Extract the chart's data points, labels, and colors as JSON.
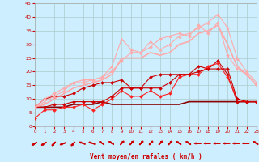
{
  "xlabel": "Vent moyen/en rafales ( km/h )",
  "background_color": "#cceeff",
  "grid_color": "#aacccc",
  "xlim": [
    0,
    23
  ],
  "ylim": [
    0,
    45
  ],
  "xticks": [
    0,
    1,
    2,
    3,
    4,
    5,
    6,
    7,
    8,
    9,
    10,
    11,
    12,
    13,
    14,
    15,
    16,
    17,
    18,
    19,
    20,
    21,
    22,
    23
  ],
  "yticks": [
    0,
    5,
    10,
    15,
    20,
    25,
    30,
    35,
    40,
    45
  ],
  "series": [
    {
      "x": [
        0,
        1,
        2,
        3,
        4,
        5,
        6,
        7,
        8,
        9,
        10,
        11,
        12,
        13,
        14,
        15,
        16,
        17,
        18,
        19,
        20,
        21,
        22,
        23
      ],
      "y": [
        7,
        10,
        11,
        11,
        12,
        14,
        15,
        16,
        16,
        17,
        14,
        14,
        18,
        19,
        19,
        19,
        19,
        22,
        21,
        24,
        19,
        9,
        9,
        9
      ],
      "color": "#cc0000",
      "marker": "D",
      "markersize": 2.0,
      "linewidth": 0.8
    },
    {
      "x": [
        0,
        1,
        2,
        3,
        4,
        5,
        6,
        7,
        8,
        9,
        10,
        11,
        12,
        13,
        14,
        15,
        16,
        17,
        18,
        19,
        20,
        21,
        22,
        23
      ],
      "y": [
        3,
        6,
        6,
        7,
        7,
        8,
        6,
        8,
        10,
        13,
        11,
        11,
        13,
        11,
        12,
        18,
        19,
        19,
        22,
        23,
        18,
        10,
        9,
        9
      ],
      "color": "#ff2222",
      "marker": "D",
      "markersize": 2.0,
      "linewidth": 0.8
    },
    {
      "x": [
        0,
        1,
        2,
        3,
        4,
        5,
        6,
        7,
        8,
        9,
        10,
        11,
        12,
        13,
        14,
        15,
        16,
        17,
        18,
        19,
        20,
        21,
        22,
        23
      ],
      "y": [
        7,
        7,
        8,
        8,
        9,
        9,
        9,
        9,
        11,
        14,
        14,
        14,
        14,
        14,
        16,
        19,
        19,
        20,
        21,
        21,
        21,
        10,
        9,
        9
      ],
      "color": "#cc0000",
      "marker": "D",
      "markersize": 2.0,
      "linewidth": 0.8
    },
    {
      "x": [
        0,
        1,
        2,
        3,
        4,
        5,
        6,
        7,
        8,
        9,
        10,
        11,
        12,
        13,
        14,
        15,
        16,
        17,
        18,
        19,
        20,
        21,
        22,
        23
      ],
      "y": [
        7,
        7,
        7,
        7,
        8,
        8,
        8,
        9,
        8,
        8,
        8,
        8,
        8,
        8,
        8,
        8,
        9,
        9,
        9,
        9,
        9,
        9,
        9,
        9
      ],
      "color": "#880000",
      "marker": null,
      "markersize": 0,
      "linewidth": 1.2
    },
    {
      "x": [
        0,
        1,
        2,
        3,
        4,
        5,
        6,
        7,
        8,
        9,
        10,
        11,
        12,
        13,
        14,
        15,
        16,
        17,
        18,
        19,
        20,
        21,
        22,
        23
      ],
      "y": [
        7,
        10,
        12,
        14,
        16,
        17,
        17,
        18,
        20,
        24,
        27,
        27,
        29,
        32,
        33,
        34,
        33,
        37,
        34,
        38,
        26,
        21,
        19,
        15
      ],
      "color": "#ffaaaa",
      "marker": "D",
      "markersize": 2.0,
      "linewidth": 0.8
    },
    {
      "x": [
        0,
        1,
        2,
        3,
        4,
        5,
        6,
        7,
        8,
        9,
        10,
        11,
        12,
        13,
        14,
        15,
        16,
        17,
        18,
        19,
        20,
        21,
        22,
        23
      ],
      "y": [
        7,
        9,
        11,
        13,
        16,
        16,
        17,
        18,
        22,
        32,
        28,
        27,
        31,
        28,
        30,
        33,
        34,
        36,
        38,
        41,
        36,
        25,
        20,
        16
      ],
      "color": "#ffaaaa",
      "marker": "^",
      "markersize": 2.5,
      "linewidth": 0.8
    },
    {
      "x": [
        0,
        1,
        2,
        3,
        4,
        5,
        6,
        7,
        8,
        9,
        10,
        11,
        12,
        13,
        14,
        15,
        16,
        17,
        18,
        19,
        20,
        21,
        22,
        23
      ],
      "y": [
        7,
        8,
        10,
        12,
        14,
        15,
        16,
        17,
        19,
        25,
        25,
        25,
        27,
        26,
        27,
        30,
        31,
        34,
        35,
        37,
        30,
        22,
        19,
        15
      ],
      "color": "#ffaaaa",
      "marker": null,
      "markersize": 0,
      "linewidth": 1.2
    }
  ],
  "wind_arrows": {
    "x": [
      0,
      1,
      2,
      3,
      4,
      5,
      6,
      7,
      8,
      9,
      10,
      11,
      12,
      13,
      14,
      15,
      16,
      17,
      18,
      19,
      20,
      21,
      22,
      23
    ],
    "angles": [
      225,
      225,
      210,
      240,
      210,
      300,
      300,
      315,
      315,
      30,
      30,
      30,
      30,
      30,
      30,
      315,
      315,
      270,
      270,
      270,
      270,
      270,
      270,
      315
    ]
  }
}
